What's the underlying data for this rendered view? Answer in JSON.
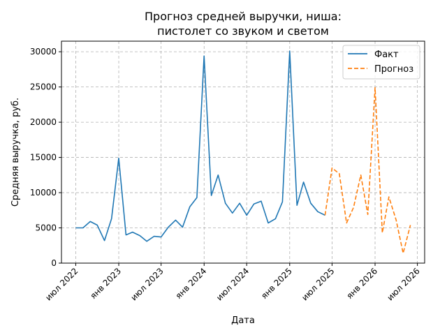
{
  "chart_data": {
    "type": "line",
    "title": [
      "Прогноз средней выручки, ниша:",
      "пистолет со звуком и светом"
    ],
    "xlabel": "Дата",
    "ylabel": "Средняя выручка, руб.",
    "ylim": [
      0,
      31500
    ],
    "yticks": [
      0,
      5000,
      10000,
      15000,
      20000,
      25000,
      30000
    ],
    "xlim": [
      "2022-05-01",
      "2026-08-01"
    ],
    "xticks": [
      {
        "date": "2022-07-01",
        "label": "июл 2022"
      },
      {
        "date": "2023-01-01",
        "label": "янв 2023"
      },
      {
        "date": "2023-07-01",
        "label": "июл 2023"
      },
      {
        "date": "2024-01-01",
        "label": "янв 2024"
      },
      {
        "date": "2024-07-01",
        "label": "июл 2024"
      },
      {
        "date": "2025-01-01",
        "label": "янв 2025"
      },
      {
        "date": "2025-07-01",
        "label": "июл 2025"
      },
      {
        "date": "2026-01-01",
        "label": "янв 2026"
      },
      {
        "date": "2026-07-01",
        "label": "июл 2026"
      }
    ],
    "grid": true,
    "legend_position": "top-right",
    "series": [
      {
        "name": "Факт",
        "color": "#1f77b4",
        "style": "solid",
        "x": [
          "2022-07-01",
          "2022-08-01",
          "2022-09-01",
          "2022-10-01",
          "2022-11-01",
          "2022-12-01",
          "2023-01-01",
          "2023-02-01",
          "2023-03-01",
          "2023-04-01",
          "2023-05-01",
          "2023-06-01",
          "2023-07-01",
          "2023-08-01",
          "2023-09-01",
          "2023-10-01",
          "2023-11-01",
          "2023-12-01",
          "2024-01-01",
          "2024-02-01",
          "2024-03-01",
          "2024-04-01",
          "2024-05-01",
          "2024-06-01",
          "2024-07-01",
          "2024-08-01",
          "2024-09-01",
          "2024-10-01",
          "2024-11-01",
          "2024-12-01",
          "2025-01-01",
          "2025-02-01",
          "2025-03-01",
          "2025-04-01",
          "2025-05-01",
          "2025-06-01"
        ],
        "values": [
          5000,
          5000,
          5900,
          5400,
          3200,
          6300,
          14900,
          4000,
          4400,
          3900,
          3100,
          3800,
          3700,
          5100,
          6100,
          5100,
          8000,
          9300,
          29400,
          9600,
          12500,
          8500,
          7100,
          8500,
          6800,
          8400,
          8800,
          5700,
          6300,
          8700,
          30100,
          8200,
          11500,
          8500,
          7300,
          6800
        ]
      },
      {
        "name": "Прогноз",
        "color": "#ff7f0e",
        "style": "dashed",
        "x": [
          "2025-06-01",
          "2025-07-01",
          "2025-08-01",
          "2025-09-01",
          "2025-10-01",
          "2025-11-01",
          "2025-12-01",
          "2026-01-01",
          "2026-02-01",
          "2026-03-01",
          "2026-04-01",
          "2026-05-01",
          "2026-06-01"
        ],
        "values": [
          6800,
          13500,
          12700,
          5700,
          7900,
          12500,
          6900,
          24900,
          4300,
          9400,
          6100,
          1400,
          5400
        ]
      }
    ]
  }
}
